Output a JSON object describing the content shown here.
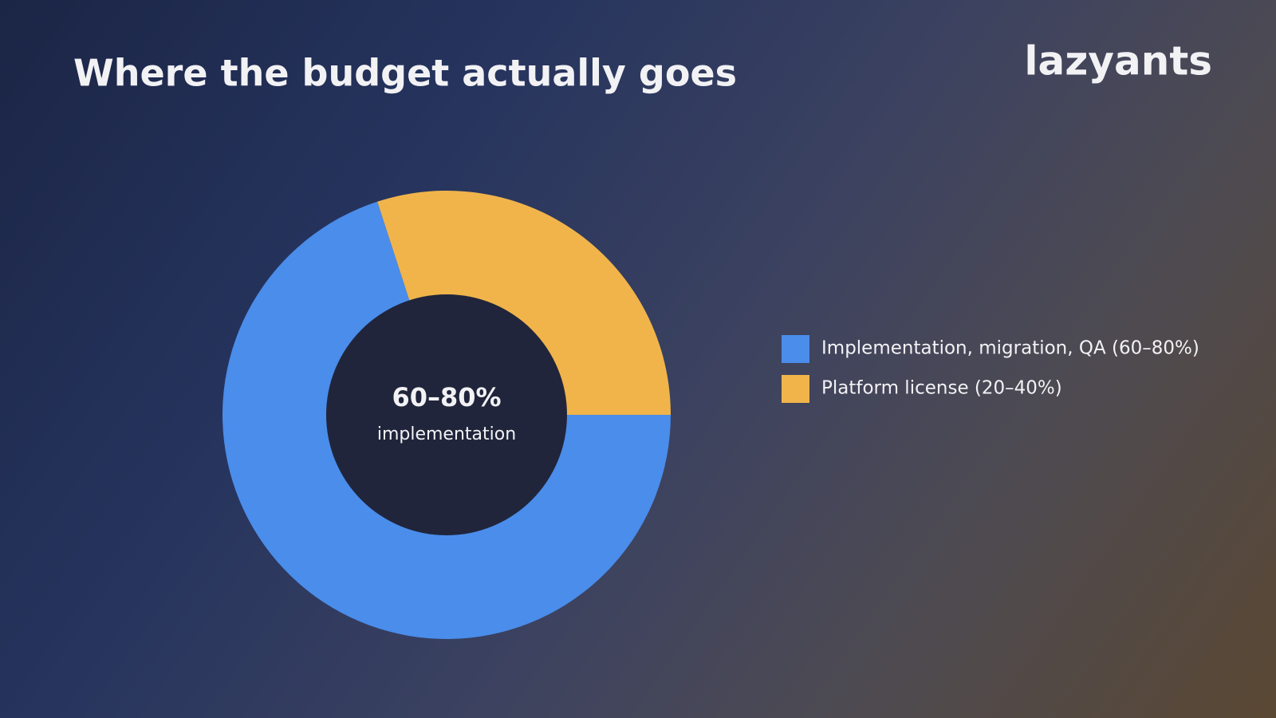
{
  "logo": "lazyants",
  "chart_data": {
    "type": "donut",
    "title": "Where the budget actually goes",
    "categories": [
      "Implementation, migration, QA (60–80%)",
      "Platform license (20–40%)"
    ],
    "values": [
      70,
      30
    ],
    "colors": [
      "#4a8deb",
      "#f0b44b"
    ],
    "center_label": "60–80%",
    "center_sublabel": "implementation",
    "legend": "right"
  }
}
